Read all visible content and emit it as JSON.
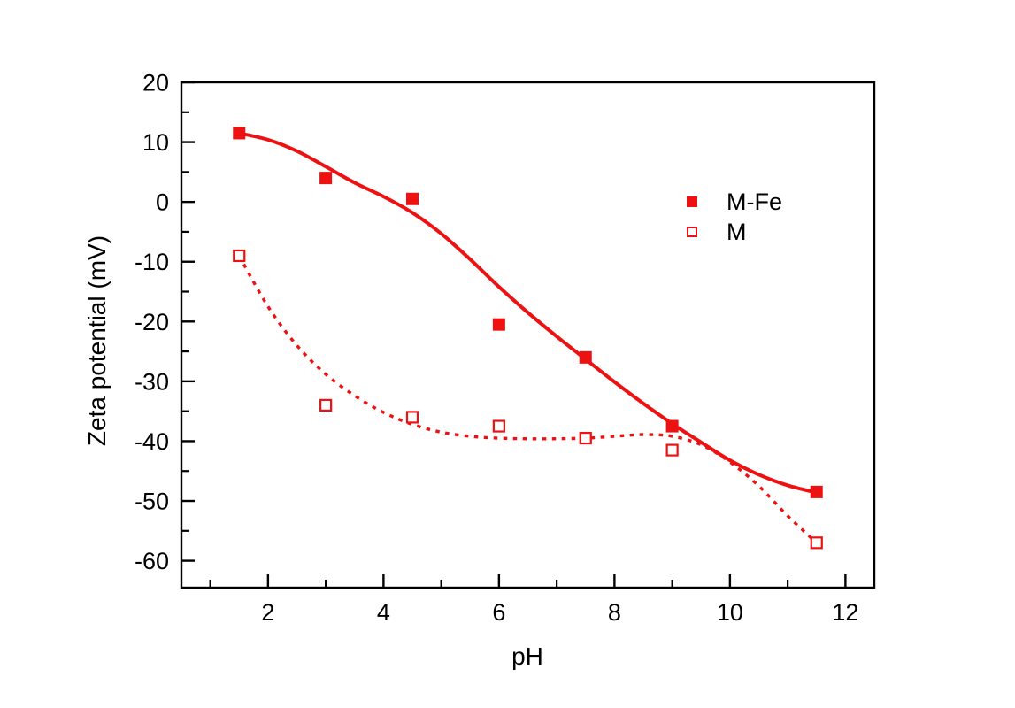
{
  "figure": {
    "background": "#ffffff",
    "axis_color": "#000000",
    "accent_red": "#ee1111"
  },
  "chart_data": {
    "type": "scatter",
    "title": "",
    "xlabel": "pH",
    "ylabel": "Zeta potential (mV)",
    "xlim": [
      0.5,
      12.5
    ],
    "ylim": [
      -64.5,
      20
    ],
    "grid": false,
    "x_major_ticks": [
      2,
      4,
      6,
      8,
      10,
      12
    ],
    "x_minor_ticks": [
      1,
      3,
      5,
      7,
      9,
      11
    ],
    "y_major_ticks": [
      20,
      10,
      0,
      -10,
      -20,
      -30,
      -40,
      -50,
      -60
    ],
    "y_minor_ticks": [
      15,
      5,
      -5,
      -15,
      -25,
      -35,
      -45,
      -55
    ],
    "legend": {
      "position": "upper-right"
    },
    "series": [
      {
        "name": "M-Fe",
        "marker": "filled-square",
        "line_style": "solid",
        "color": "#ee1111",
        "x": [
          1.5,
          3,
          4.5,
          6,
          7.5,
          9,
          11.5
        ],
        "y": [
          11.5,
          4,
          0.5,
          -20.5,
          -26,
          -37.5,
          -48.5
        ],
        "fit_x": [
          1.5,
          2,
          2.5,
          3,
          3.5,
          4,
          4.5,
          5,
          5.5,
          6,
          6.5,
          7,
          7.5,
          8,
          8.5,
          9,
          9.5,
          10,
          10.5,
          11,
          11.5
        ],
        "fit_y": [
          11.5,
          10.4,
          8.5,
          5.9,
          3.2,
          0.9,
          -1.8,
          -5.3,
          -9.6,
          -14.2,
          -18.5,
          -22.5,
          -26.3,
          -30.1,
          -33.7,
          -37.1,
          -40.2,
          -43.2,
          -45.6,
          -47.4,
          -48.6
        ]
      },
      {
        "name": "M",
        "marker": "open-square",
        "line_style": "dotted",
        "color": "#ee1111",
        "x": [
          1.5,
          3,
          4.5,
          6,
          7.5,
          9,
          11.5
        ],
        "y": [
          -9,
          -34,
          -36,
          -37.5,
          -39.5,
          -41.5,
          -57
        ],
        "fit_x": [
          1.5,
          2,
          2.5,
          3,
          3.5,
          4,
          4.5,
          5,
          5.5,
          6,
          6.5,
          7,
          7.5,
          8,
          8.5,
          9,
          9.5,
          10,
          10.5,
          11,
          11.5
        ],
        "fit_y": [
          -9,
          -17.5,
          -24,
          -28.8,
          -32.4,
          -35.2,
          -37.2,
          -38.5,
          -39.2,
          -39.5,
          -39.6,
          -39.6,
          -39.5,
          -39.2,
          -38.9,
          -39.2,
          -40.6,
          -43.5,
          -47.5,
          -52.5,
          -57
        ]
      }
    ]
  }
}
